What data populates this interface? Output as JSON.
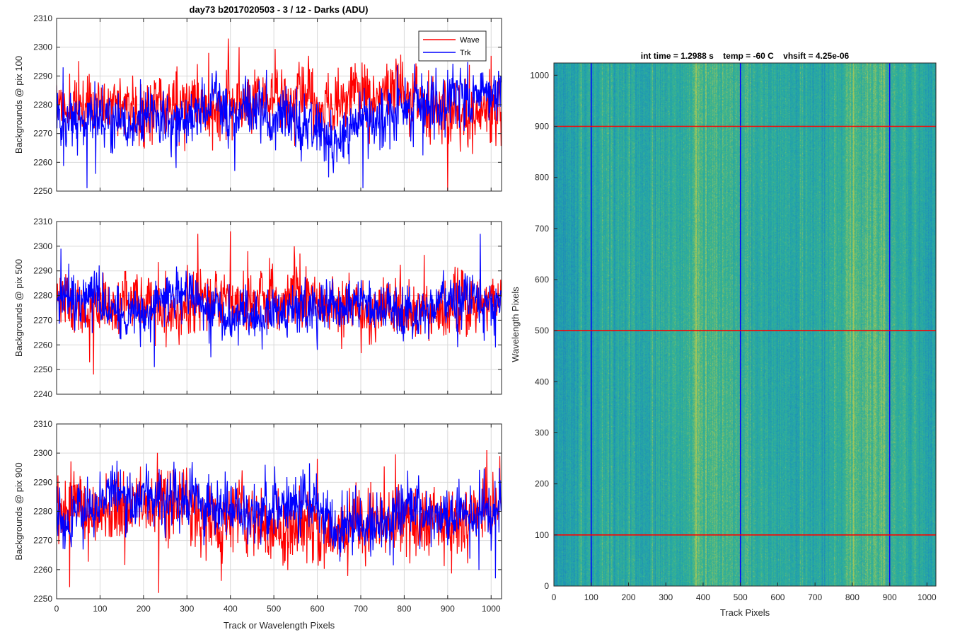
{
  "figure": {
    "suptitle": "day73 b2017020503 - 3 / 12 - Darks (ADU)"
  },
  "colors": {
    "wave": "#ff0000",
    "trk": "#0000ff",
    "grid": "#d9d9d9",
    "axis": "#262626",
    "heat_low": "#1f8fbd",
    "heat_mid": "#2fb3a0",
    "heat_high": "#a8c850"
  },
  "chart_data": [
    {
      "type": "line",
      "ylabel": "Backgrounds @ pix 100",
      "xlabel": "",
      "xlim": [
        0,
        1024
      ],
      "ylim": [
        2250,
        2310
      ],
      "xticks": [
        0,
        100,
        200,
        300,
        400,
        500,
        600,
        700,
        800,
        900,
        1000
      ],
      "yticks": [
        2250,
        2260,
        2270,
        2280,
        2290,
        2300,
        2310
      ],
      "grid": true,
      "legend": {
        "placement": "top-right",
        "entries": [
          "Wave",
          "Trk"
        ]
      },
      "series": [
        {
          "name": "Wave",
          "color": "#ff0000",
          "mean": 2280,
          "noise": 5.5,
          "seed": 11,
          "spikes": [
            [
              395,
              2303
            ],
            [
              420,
              2300
            ],
            [
              900,
              2250
            ],
            [
              350,
              2298
            ],
            [
              580,
              2297
            ],
            [
              1000,
              2297
            ]
          ]
        },
        {
          "name": "Trk",
          "color": "#0000ff",
          "mean": 2277,
          "noise": 5.2,
          "seed": 12,
          "spikes": [
            [
              70,
              2251
            ],
            [
              705,
              2251
            ],
            [
              90,
              2256
            ],
            [
              410,
              2257
            ],
            [
              15,
              2293
            ]
          ]
        }
      ]
    },
    {
      "type": "line",
      "ylabel": "Backgrounds @ pix 500",
      "xlabel": "",
      "xlim": [
        0,
        1024
      ],
      "ylim": [
        2240,
        2310
      ],
      "xticks": [
        0,
        100,
        200,
        300,
        400,
        500,
        600,
        700,
        800,
        900,
        1000
      ],
      "yticks": [
        2240,
        2250,
        2260,
        2270,
        2280,
        2290,
        2300,
        2310
      ],
      "grid": true,
      "legend": null,
      "series": [
        {
          "name": "Wave",
          "color": "#ff0000",
          "mean": 2278,
          "noise": 6.0,
          "seed": 21,
          "spikes": [
            [
              85,
              2248
            ],
            [
              325,
              2305
            ],
            [
              400,
              2306
            ],
            [
              440,
              2298
            ],
            [
              560,
              2297
            ]
          ]
        },
        {
          "name": "Trk",
          "color": "#0000ff",
          "mean": 2276,
          "noise": 5.0,
          "seed": 22,
          "spikes": [
            [
              975,
              2305
            ],
            [
              10,
              2299
            ],
            [
              225,
              2251
            ],
            [
              355,
              2255
            ],
            [
              1010,
              2259
            ]
          ]
        }
      ]
    },
    {
      "type": "line",
      "ylabel": "Backgrounds @ pix 900",
      "xlabel": "Track or Wavelength Pixels",
      "xlim": [
        0,
        1024
      ],
      "ylim": [
        2250,
        2310
      ],
      "xticks": [
        0,
        100,
        200,
        300,
        400,
        500,
        600,
        700,
        800,
        900,
        1000
      ],
      "yticks": [
        2250,
        2260,
        2270,
        2280,
        2290,
        2300,
        2310
      ],
      "grid": true,
      "legend": null,
      "series": [
        {
          "name": "Wave",
          "color": "#ff0000",
          "mean": 2279,
          "noise": 6.0,
          "seed": 31,
          "spikes": [
            [
              235,
              2252
            ],
            [
              30,
              2254
            ],
            [
              990,
              2301
            ],
            [
              1020,
              2299
            ],
            [
              600,
              2298
            ]
          ]
        },
        {
          "name": "Trk",
          "color": "#0000ff",
          "mean": 2279,
          "noise": 5.0,
          "seed": 32,
          "spikes": [
            [
              1010,
              2257
            ],
            [
              270,
              2297
            ],
            [
              480,
              2296
            ]
          ]
        }
      ]
    },
    {
      "type": "heatmap",
      "title": "int time = 1.2988 s    temp = -60 C    vhsift = 4.25e-06",
      "xlabel": "Track Pixels",
      "ylabel": "Wavelength Pixels",
      "xlim": [
        0,
        1024
      ],
      "ylim": [
        0,
        1024
      ],
      "xticks": [
        0,
        100,
        200,
        300,
        400,
        500,
        600,
        700,
        800,
        900,
        1000
      ],
      "yticks": [
        0,
        100,
        200,
        300,
        400,
        500,
        600,
        700,
        800,
        900,
        1000
      ],
      "vertical_lines": {
        "color": "#0000ff",
        "x": [
          100,
          500,
          900
        ]
      },
      "horizontal_lines": {
        "color": "#ff0000",
        "y": [
          100,
          500,
          900
        ]
      },
      "bright_bands_x": [
        420,
        840
      ]
    }
  ]
}
